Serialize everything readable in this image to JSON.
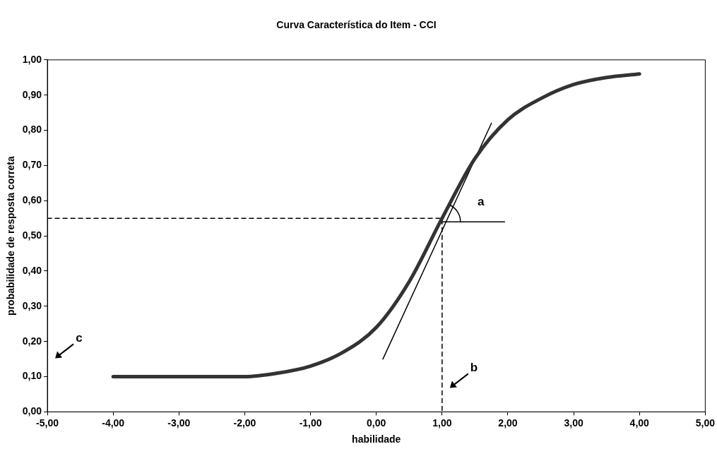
{
  "chart_data": {
    "type": "line",
    "title": "Curva Característica do Item - CCI",
    "xlabel": "habilidade",
    "ylabel": "probabilidade de resposta correta",
    "xlim": [
      -5,
      5
    ],
    "xticks": [
      {
        "value": -5,
        "label": "-5,00"
      },
      {
        "value": -4,
        "label": "-4,00"
      },
      {
        "value": -3,
        "label": "-3,00"
      },
      {
        "value": -2,
        "label": "-2,00"
      },
      {
        "value": -1,
        "label": "-1,00"
      },
      {
        "value": 0,
        "label": "0,00"
      },
      {
        "value": 1,
        "label": "1,00"
      },
      {
        "value": 2,
        "label": "2,00"
      },
      {
        "value": 3,
        "label": "3,00"
      },
      {
        "value": 4,
        "label": "4,00"
      },
      {
        "value": 5,
        "label": "5,00"
      }
    ],
    "ylim": [
      0,
      1
    ],
    "yticks": [
      {
        "value": 0,
        "label": "0,00"
      },
      {
        "value": 0.1,
        "label": "0,10"
      },
      {
        "value": 0.2,
        "label": "0,20"
      },
      {
        "value": 0.3,
        "label": "0,30"
      },
      {
        "value": 0.4,
        "label": "0,40"
      },
      {
        "value": 0.5,
        "label": "0,50"
      },
      {
        "value": 0.6,
        "label": "0,60"
      },
      {
        "value": 0.7,
        "label": "0,70"
      },
      {
        "value": 0.8,
        "label": "0,80"
      },
      {
        "value": 0.9,
        "label": "0,90"
      },
      {
        "value": 1,
        "label": "1,00"
      }
    ],
    "grid": false,
    "legend": false,
    "marker": "none",
    "series": [
      {
        "color": "#333333",
        "line_style": "solid",
        "x": [
          -4,
          -3.5,
          -3,
          -2.5,
          -2,
          -1.5,
          -1,
          -0.5,
          0,
          0.5,
          1,
          1.5,
          2,
          2.5,
          3,
          3.5,
          4
        ],
        "values": [
          0.1,
          0.1,
          0.1,
          0.1,
          0.1,
          0.11,
          0.13,
          0.17,
          0.24,
          0.37,
          0.55,
          0.72,
          0.83,
          0.89,
          0.93,
          0.95,
          0.96
        ]
      },
      {
        "color": "#000000",
        "line_style": "solid",
        "x": [
          0.1,
          1.75
        ],
        "values": [
          0.15,
          0.82
        ]
      },
      {
        "color": "#000000",
        "line_style": "solid",
        "x": [
          1,
          1.95
        ],
        "values": [
          0.54,
          0.54
        ]
      },
      {
        "color": "#000000",
        "line_style": "dashed",
        "x": [
          -5,
          1,
          1
        ],
        "values": [
          0.55,
          0.55,
          0
        ]
      }
    ],
    "annotations": [
      "a",
      "b",
      "c"
    ]
  }
}
